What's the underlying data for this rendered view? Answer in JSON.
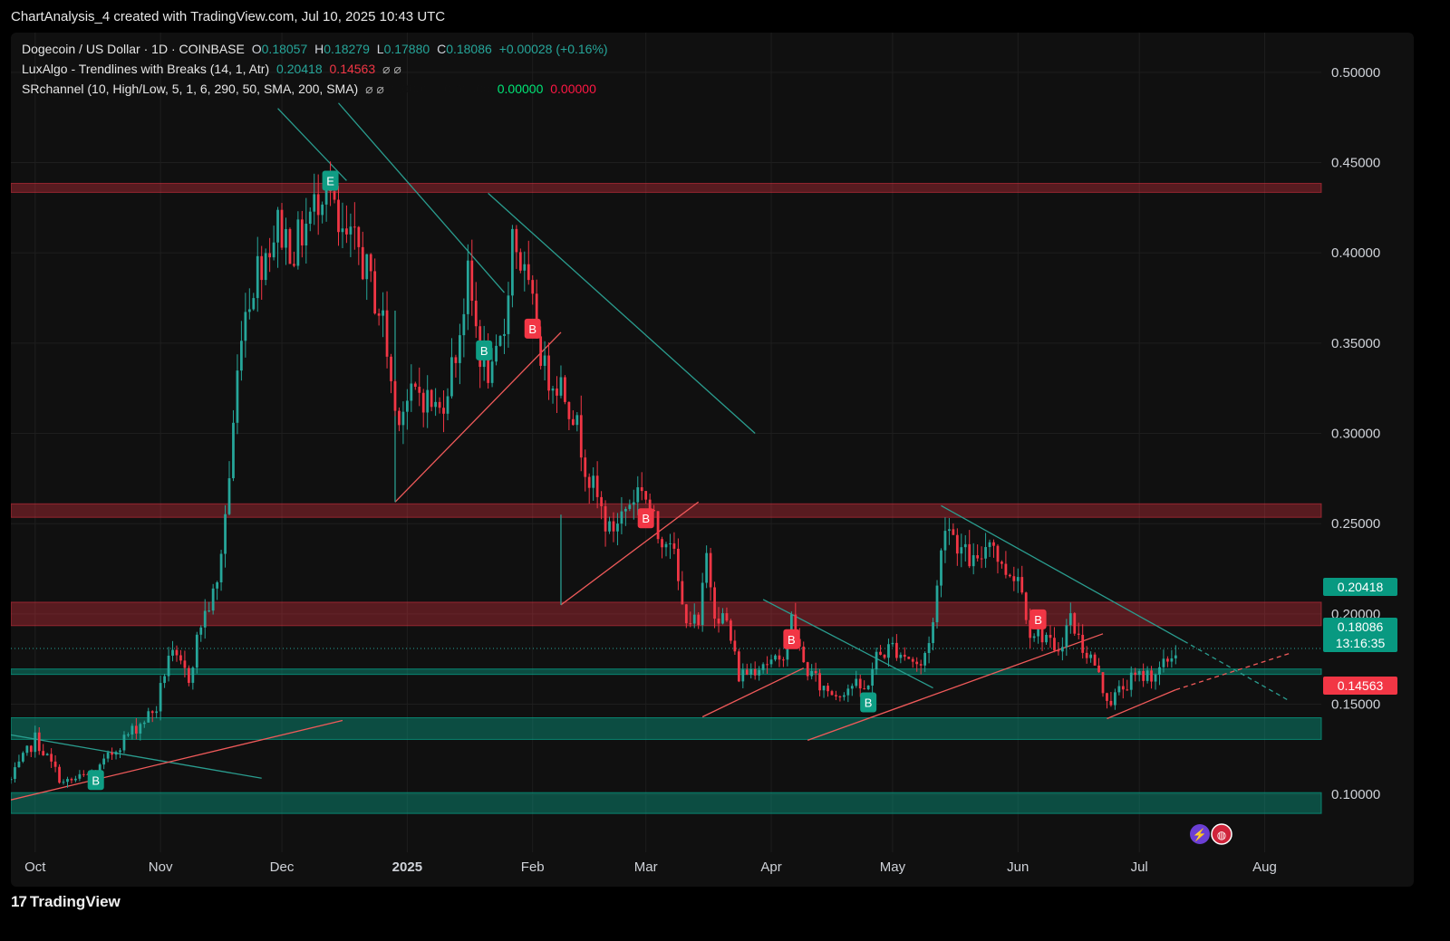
{
  "header": {
    "title": "ChartAnalysis_4 created with TradingView.com, Jul 10, 2025 10:43 UTC"
  },
  "legend": {
    "symbol": "Dogecoin / US Dollar · 1D · COINBASE",
    "o_label": "O",
    "o": "0.18057",
    "h_label": "H",
    "h": "0.18279",
    "l_label": "L",
    "l": "0.17880",
    "c_label": "C",
    "c": "0.18086",
    "change": "+0.00028 (+0.16%)",
    "lux": "LuxAlgo - Trendlines with Breaks (14, 1, Atr)",
    "lux_v1": "0.20418",
    "lux_v2": "0.14563",
    "lux_icons": "⌀ ⌀",
    "sr": "SRchannel (10, High/Low, 5, 1, 6, 290, 50, SMA, 200, SMA)",
    "sr_icons": "⌀ ⌀",
    "sr_v1": "0.00000",
    "sr_v2": "0.00000",
    "sr_v3": "0.00000",
    "sr_v4": "0.00000"
  },
  "price_tags": {
    "upper": "0.20418",
    "last": "0.18086",
    "countdown": "13:16:35",
    "lower": "0.14563"
  },
  "colors": {
    "up": "#26a69a",
    "down": "#f23645",
    "bg": "#101010",
    "res_zone": "#f23645",
    "sup_zone": "#089981"
  },
  "footer": {
    "brand": "TradingView",
    "logo": "17"
  },
  "chart_data": {
    "type": "candlestick",
    "title": "Dogecoin / US Dollar · 1D · COINBASE",
    "y_ticks": [
      "0.50000",
      "0.45000",
      "0.40000",
      "0.35000",
      "0.30000",
      "0.25000",
      "0.20000",
      "0.15000",
      "0.10000"
    ],
    "ylim": [
      0.068,
      0.522
    ],
    "x_ticks": [
      "Oct",
      "Nov",
      "Dec",
      "2025",
      "Feb",
      "Mar",
      "Apr",
      "May",
      "Jun",
      "Jul",
      "Aug"
    ],
    "x_tick_days": [
      0,
      31,
      61,
      92,
      123,
      151,
      182,
      212,
      243,
      273,
      304
    ],
    "x_range_days": [
      -6,
      318
    ],
    "resistance_zones": [
      [
        0.4335,
        0.4385
      ],
      [
        0.2535,
        0.261
      ],
      [
        0.1935,
        0.2065
      ]
    ],
    "support_zones": [
      [
        0.1665,
        0.1695
      ],
      [
        0.1305,
        0.1425
      ],
      [
        0.0895,
        0.101
      ]
    ],
    "current_price": 0.18086,
    "path_points": [
      [
        -6,
        0.108
      ],
      [
        0,
        0.131
      ],
      [
        7,
        0.106
      ],
      [
        15,
        0.112
      ],
      [
        22,
        0.131
      ],
      [
        30,
        0.148
      ],
      [
        33,
        0.178
      ],
      [
        38,
        0.165
      ],
      [
        41,
        0.195
      ],
      [
        45,
        0.215
      ],
      [
        48,
        0.276
      ],
      [
        51,
        0.361
      ],
      [
        55,
        0.392
      ],
      [
        60,
        0.415
      ],
      [
        64,
        0.402
      ],
      [
        69,
        0.425
      ],
      [
        72,
        0.445
      ],
      [
        75,
        0.408
      ],
      [
        80,
        0.402
      ],
      [
        86,
        0.362
      ],
      [
        89,
        0.312
      ],
      [
        95,
        0.323
      ],
      [
        100,
        0.312
      ],
      [
        104,
        0.345
      ],
      [
        107,
        0.385
      ],
      [
        110,
        0.345
      ],
      [
        113,
        0.33
      ],
      [
        116,
        0.358
      ],
      [
        118,
        0.412
      ],
      [
        120,
        0.395
      ],
      [
        124,
        0.358
      ],
      [
        126,
        0.334
      ],
      [
        130,
        0.328
      ],
      [
        133,
        0.312
      ],
      [
        137,
        0.275
      ],
      [
        142,
        0.245
      ],
      [
        147,
        0.262
      ],
      [
        150,
        0.272
      ],
      [
        154,
        0.243
      ],
      [
        157,
        0.244
      ],
      [
        160,
        0.203
      ],
      [
        164,
        0.192
      ],
      [
        166,
        0.232
      ],
      [
        168,
        0.203
      ],
      [
        171,
        0.195
      ],
      [
        174,
        0.166
      ],
      [
        176,
        0.168
      ],
      [
        180,
        0.174
      ],
      [
        184,
        0.172
      ],
      [
        187,
        0.196
      ],
      [
        190,
        0.172
      ],
      [
        194,
        0.16
      ],
      [
        198,
        0.156
      ],
      [
        202,
        0.161
      ],
      [
        205,
        0.157
      ],
      [
        208,
        0.176
      ],
      [
        212,
        0.182
      ],
      [
        216,
        0.176
      ],
      [
        219,
        0.17
      ],
      [
        222,
        0.195
      ],
      [
        225,
        0.253
      ],
      [
        229,
        0.235
      ],
      [
        233,
        0.226
      ],
      [
        236,
        0.245
      ],
      [
        239,
        0.225
      ],
      [
        243,
        0.222
      ],
      [
        246,
        0.192
      ],
      [
        250,
        0.188
      ],
      [
        252,
        0.176
      ],
      [
        256,
        0.198
      ],
      [
        258,
        0.186
      ],
      [
        262,
        0.172
      ],
      [
        264,
        0.158
      ],
      [
        266,
        0.152
      ],
      [
        270,
        0.162
      ],
      [
        274,
        0.166
      ],
      [
        278,
        0.168
      ],
      [
        282,
        0.18
      ]
    ],
    "trendlines": [
      {
        "color": "teal",
        "from": [
          -6,
          0.133
        ],
        "to": [
          56,
          0.109
        ]
      },
      {
        "color": "red",
        "from": [
          -6,
          0.097
        ],
        "to": [
          76,
          0.141
        ]
      },
      {
        "color": "teal",
        "from": [
          60,
          0.48
        ],
        "to": [
          77,
          0.44
        ]
      },
      {
        "color": "teal",
        "from": [
          75,
          0.483
        ],
        "to": [
          116,
          0.378
        ]
      },
      {
        "color": "teal",
        "from": [
          112,
          0.433
        ],
        "to": [
          178,
          0.3
        ]
      },
      {
        "color": "red",
        "from": [
          89,
          0.262
        ],
        "to": [
          130,
          0.356
        ]
      },
      {
        "color": "teal",
        "from": [
          89,
          0.368
        ],
        "to": [
          89,
          0.262
        ]
      },
      {
        "color": "red",
        "from": [
          130,
          0.205
        ],
        "to": [
          164,
          0.262
        ]
      },
      {
        "color": "teal",
        "from": [
          130,
          0.255
        ],
        "to": [
          130,
          0.205
        ]
      },
      {
        "color": "teal",
        "from": [
          180,
          0.208
        ],
        "to": [
          222,
          0.159
        ]
      },
      {
        "color": "red",
        "from": [
          165,
          0.143
        ],
        "to": [
          190,
          0.17
        ]
      },
      {
        "color": "red",
        "from": [
          191,
          0.13
        ],
        "to": [
          264,
          0.189
        ]
      },
      {
        "color": "teal",
        "from": [
          224,
          0.26
        ],
        "to": [
          284,
          0.185
        ]
      },
      {
        "color": "teal_dash",
        "from": [
          284,
          0.185
        ],
        "to": [
          310,
          0.152
        ]
      },
      {
        "color": "red",
        "from": [
          265,
          0.142
        ],
        "to": [
          282,
          0.158
        ]
      },
      {
        "color": "red_dash",
        "from": [
          282,
          0.158
        ],
        "to": [
          310,
          0.178
        ]
      }
    ],
    "break_labels": [
      {
        "text": "B",
        "type": "up",
        "day": 15,
        "price": 0.108
      },
      {
        "text": "E",
        "type": "up",
        "day": 73,
        "price": 0.44
      },
      {
        "text": "B",
        "type": "up",
        "day": 111,
        "price": 0.346
      },
      {
        "text": "B",
        "type": "down",
        "day": 123,
        "price": 0.358
      },
      {
        "text": "B",
        "type": "down",
        "day": 151,
        "price": 0.253
      },
      {
        "text": "B",
        "type": "down",
        "day": 187,
        "price": 0.186
      },
      {
        "text": "B",
        "type": "up",
        "day": 206,
        "price": 0.151
      },
      {
        "text": "B",
        "type": "down",
        "day": 248,
        "price": 0.197
      }
    ]
  }
}
